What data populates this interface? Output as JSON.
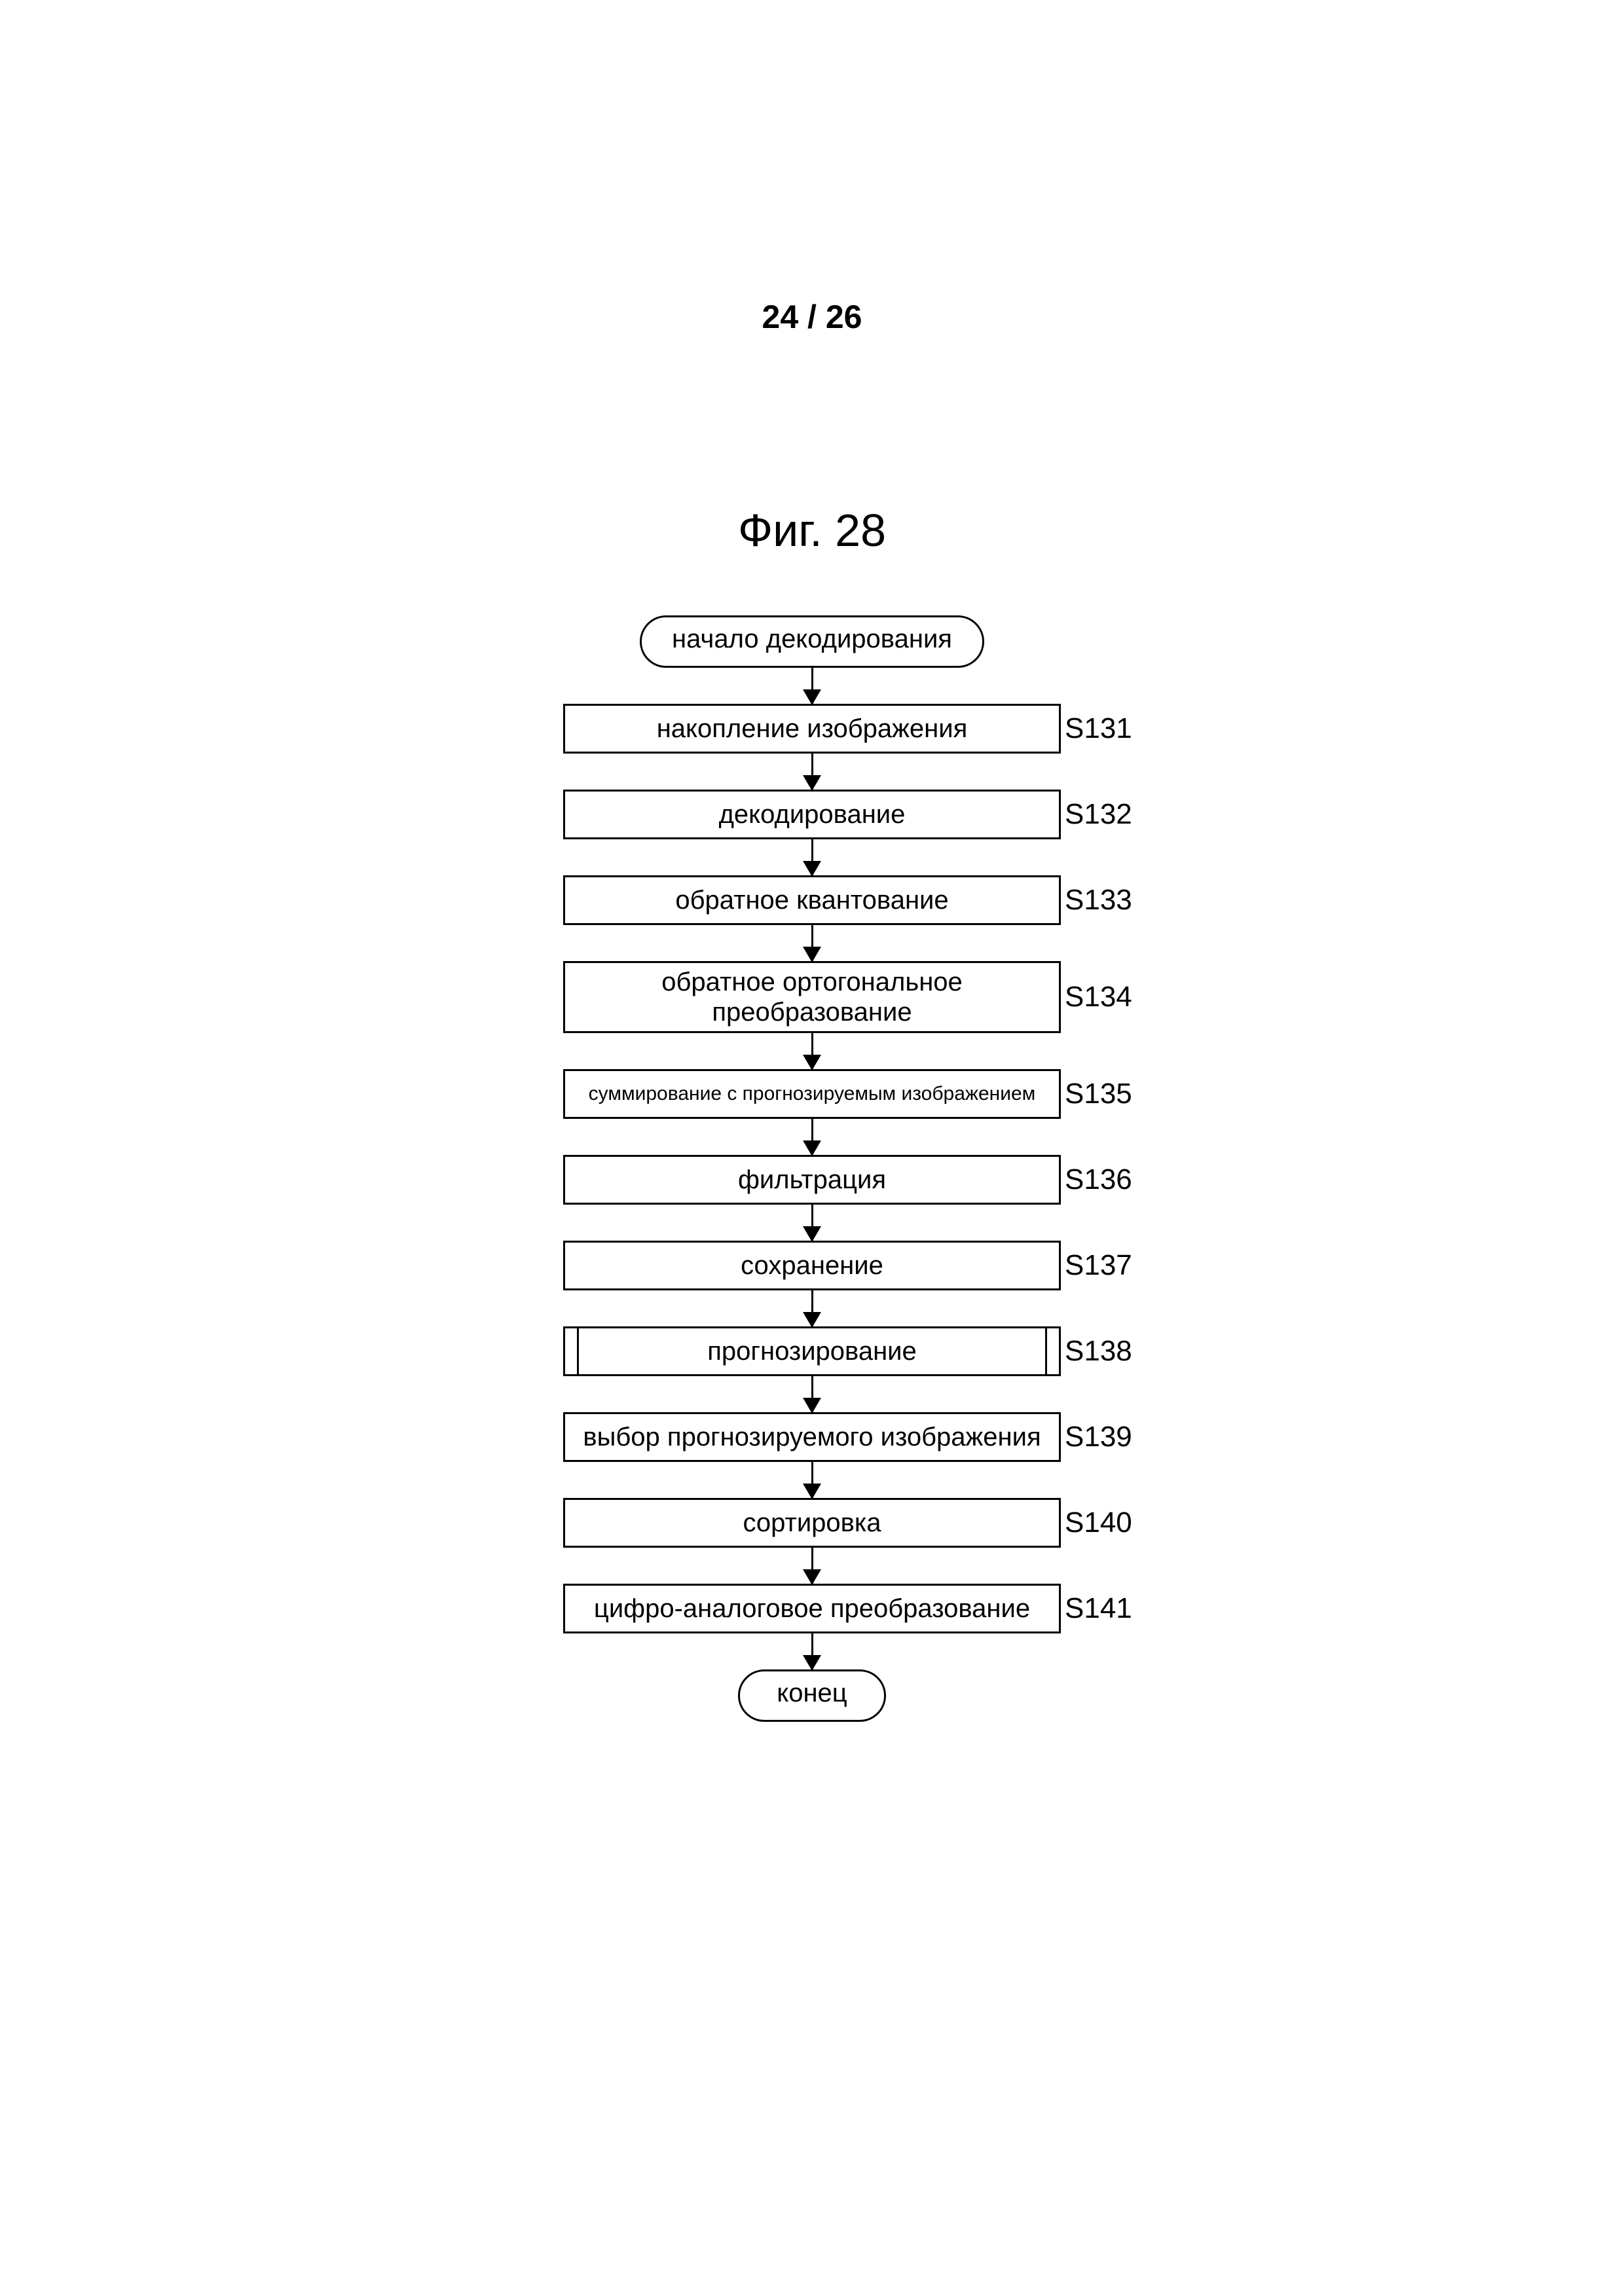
{
  "page_number": "24 / 26",
  "figure_title": "Фиг. 28",
  "colors": {
    "background": "#ffffff",
    "stroke": "#000000",
    "text": "#000000"
  },
  "flowchart": {
    "type": "flowchart",
    "start": "начало декодирования",
    "end": "конец",
    "steps": [
      {
        "id": "S131",
        "label": "накопление изображения",
        "kind": "process"
      },
      {
        "id": "S132",
        "label": "декодирование",
        "kind": "process"
      },
      {
        "id": "S133",
        "label": "обратное квантование",
        "kind": "process"
      },
      {
        "id": "S134",
        "label": "обратное ортогональное преобразование",
        "kind": "process-tall"
      },
      {
        "id": "S135",
        "label": "суммирование с прогнозируемым изображением",
        "kind": "process-small"
      },
      {
        "id": "S136",
        "label": "фильтрация",
        "kind": "process"
      },
      {
        "id": "S137",
        "label": "сохранение",
        "kind": "process"
      },
      {
        "id": "S138",
        "label": "прогнозирование",
        "kind": "subroutine"
      },
      {
        "id": "S139",
        "label": "выбор прогнозируемого изображения",
        "kind": "process"
      },
      {
        "id": "S140",
        "label": "сортировка",
        "kind": "process"
      },
      {
        "id": "S141",
        "label": "цифро-аналоговое преобразование",
        "kind": "process"
      }
    ]
  }
}
